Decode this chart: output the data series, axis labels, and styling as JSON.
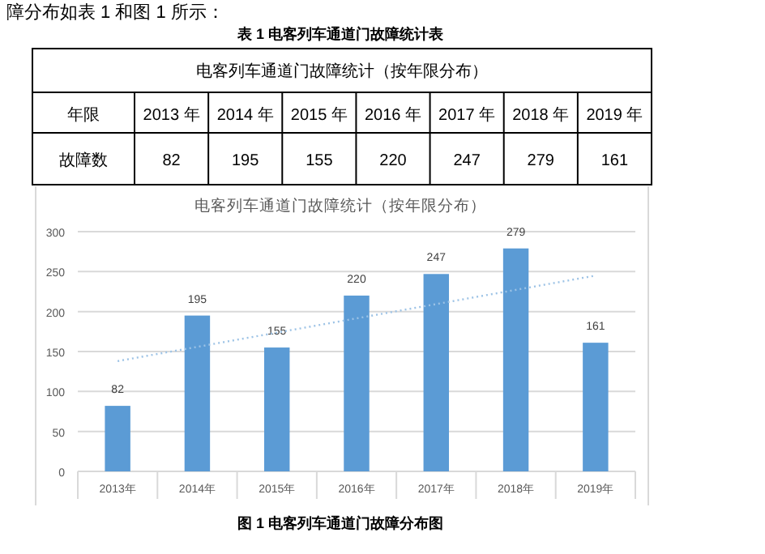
{
  "chart_data": {
    "type": "bar",
    "title": "电客列车通道门故障统计（按年限分布）",
    "categories": [
      "2013年",
      "2014年",
      "2015年",
      "2016年",
      "2017年",
      "2018年",
      "2019年"
    ],
    "series": [
      {
        "color": "#5b9bd5",
        "values": [
          82,
          195,
          155,
          220,
          247,
          279,
          161
        ],
        "value_labels": [
          "82",
          "195",
          "155",
          "220",
          "247",
          "279",
          "161"
        ]
      },
      {
        "type": "line",
        "color": "#9dc3e6",
        "line_style": "dotted",
        "x": [
          "2013年",
          "2019年"
        ],
        "values": [
          138,
          245
        ]
      }
    ],
    "ylim": [
      0,
      300
    ],
    "yticks": [
      0,
      50,
      100,
      150,
      200,
      250,
      300
    ],
    "grid": "y",
    "annotations": [
      "障分布如表 1 和图 1 所示：",
      "表 1  电客列车通道门故障统计表",
      "电客列车通道门故障统计（按年限分布）",
      "年限",
      "故障数",
      "2013 年",
      "2014 年",
      "2015 年",
      "2016 年",
      "2017 年",
      "2018 年",
      "2019 年",
      "图 1 电客列车通道门故障分布图"
    ]
  }
}
